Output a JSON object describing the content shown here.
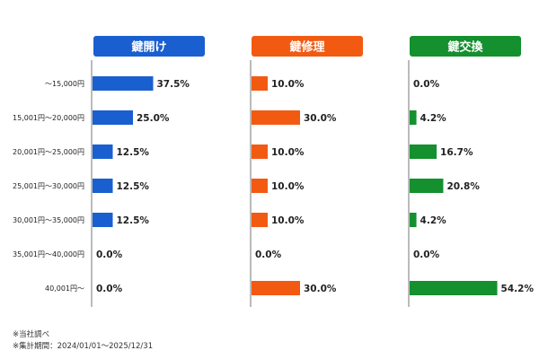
{
  "chart_data": {
    "type": "bar",
    "orientation": "horizontal",
    "grid": false,
    "categories": [
      "～15,000円",
      "15,001円～20,000円",
      "20,001円～25,000円",
      "25,001円～30,000円",
      "30,001円～35,000円",
      "35,001円～40,000円",
      "40,001円～"
    ],
    "xlim": [
      0,
      55
    ],
    "value_suffix": "%",
    "series": [
      {
        "name": "鍵開け",
        "values": [
          37.5,
          25.0,
          12.5,
          12.5,
          12.5,
          0.0,
          0.0
        ],
        "labels": [
          "37.5%",
          "25.0%",
          "12.5%",
          "12.5%",
          "12.5%",
          "0.0%",
          "0.0%"
        ]
      },
      {
        "name": "鍵修理",
        "values": [
          10.0,
          30.0,
          10.0,
          10.0,
          10.0,
          0.0,
          30.0
        ],
        "labels": [
          "10.0%",
          "30.0%",
          "10.0%",
          "10.0%",
          "10.0%",
          "0.0%",
          "30.0%"
        ]
      },
      {
        "name": "鍵交換",
        "values": [
          0.0,
          4.2,
          16.7,
          20.8,
          4.2,
          0.0,
          54.2
        ],
        "labels": [
          "0.0%",
          "4.2%",
          "16.7%",
          "20.8%",
          "4.2%",
          "0.0%",
          "54.2%"
        ]
      }
    ]
  },
  "colors": {
    "鍵開け": "#1a5fcf",
    "鍵修理": "#f25a12",
    "鍵交換": "#14902e",
    "axis": "#777777",
    "text": "#222222"
  },
  "notes": [
    "※当社調べ",
    "※集計期間：2024/01/01～2025/12/31"
  ]
}
